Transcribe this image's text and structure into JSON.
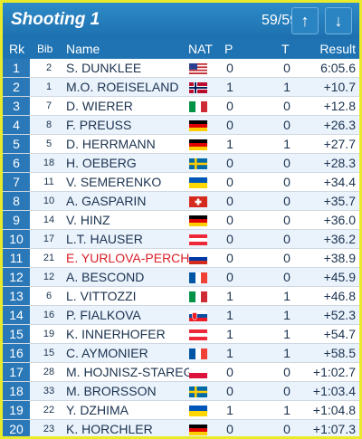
{
  "header": {
    "title": "Shooting 1",
    "counter": "59/59",
    "up_icon": "↑",
    "down_icon": "↓"
  },
  "columns": {
    "rk": "Rk",
    "bib": "Bib",
    "name": "Name",
    "nat": "NAT",
    "p": "P",
    "t": "T",
    "result": "Result"
  },
  "rows": [
    {
      "rk": "1",
      "bib": "2",
      "name": "S. DUNKLEE",
      "nat": "usa",
      "p": "0",
      "t": "0",
      "result": "6:05.6",
      "highlight": false
    },
    {
      "rk": "2",
      "bib": "1",
      "name": "M.O. ROEISELAND",
      "nat": "nor",
      "p": "1",
      "t": "1",
      "result": "+10.7",
      "highlight": false
    },
    {
      "rk": "3",
      "bib": "7",
      "name": "D. WIERER",
      "nat": "ita",
      "p": "0",
      "t": "0",
      "result": "+12.8",
      "highlight": false
    },
    {
      "rk": "4",
      "bib": "8",
      "name": "F. PREUSS",
      "nat": "ger",
      "p": "0",
      "t": "0",
      "result": "+26.3",
      "highlight": false
    },
    {
      "rk": "5",
      "bib": "5",
      "name": "D. HERRMANN",
      "nat": "ger",
      "p": "1",
      "t": "1",
      "result": "+27.7",
      "highlight": false
    },
    {
      "rk": "6",
      "bib": "18",
      "name": "H. OEBERG",
      "nat": "swe",
      "p": "0",
      "t": "0",
      "result": "+28.3",
      "highlight": false
    },
    {
      "rk": "7",
      "bib": "11",
      "name": "V. SEMERENKO",
      "nat": "ukr",
      "p": "0",
      "t": "0",
      "result": "+34.4",
      "highlight": false
    },
    {
      "rk": "8",
      "bib": "10",
      "name": "A. GASPARIN",
      "nat": "sui",
      "p": "0",
      "t": "0",
      "result": "+35.7",
      "highlight": false
    },
    {
      "rk": "9",
      "bib": "14",
      "name": "V. HINZ",
      "nat": "ger",
      "p": "0",
      "t": "0",
      "result": "+36.0",
      "highlight": false
    },
    {
      "rk": "10",
      "bib": "17",
      "name": "L.T. HAUSER",
      "nat": "aut",
      "p": "0",
      "t": "0",
      "result": "+36.2",
      "highlight": false
    },
    {
      "rk": "11",
      "bib": "21",
      "name": "E. YURLOVA-PERCHT",
      "nat": "rus",
      "p": "0",
      "t": "0",
      "result": "+38.9",
      "highlight": true
    },
    {
      "rk": "12",
      "bib": "12",
      "name": "A. BESCOND",
      "nat": "fra",
      "p": "0",
      "t": "0",
      "result": "+45.9",
      "highlight": false
    },
    {
      "rk": "13",
      "bib": "6",
      "name": "L. VITTOZZI",
      "nat": "ita",
      "p": "1",
      "t": "1",
      "result": "+46.8",
      "highlight": false
    },
    {
      "rk": "14",
      "bib": "16",
      "name": "P. FIALKOVA",
      "nat": "svk",
      "p": "1",
      "t": "1",
      "result": "+52.3",
      "highlight": false
    },
    {
      "rk": "15",
      "bib": "19",
      "name": "K. INNERHOFER",
      "nat": "aut",
      "p": "1",
      "t": "1",
      "result": "+54.7",
      "highlight": false
    },
    {
      "rk": "16",
      "bib": "15",
      "name": "C. AYMONIER",
      "nat": "fra",
      "p": "1",
      "t": "1",
      "result": "+58.5",
      "highlight": false
    },
    {
      "rk": "17",
      "bib": "28",
      "name": "M. HOJNISZ-STAREGA",
      "nat": "pol",
      "p": "0",
      "t": "0",
      "result": "+1:02.7",
      "highlight": false
    },
    {
      "rk": "18",
      "bib": "33",
      "name": "M. BRORSSON",
      "nat": "swe",
      "p": "0",
      "t": "0",
      "result": "+1:03.4",
      "highlight": false
    },
    {
      "rk": "19",
      "bib": "22",
      "name": "Y. DZHIMA",
      "nat": "ukr",
      "p": "1",
      "t": "1",
      "result": "+1:04.8",
      "highlight": false
    },
    {
      "rk": "20",
      "bib": "23",
      "name": "K. HORCHLER",
      "nat": "ger",
      "p": "0",
      "t": "0",
      "result": "+1:07.3",
      "highlight": false
    }
  ],
  "colors": {
    "frame": "#e9eb2a",
    "header": "#1f73b3",
    "rank_cell": "#2b78b8",
    "highlight_text": "#d8202a"
  }
}
